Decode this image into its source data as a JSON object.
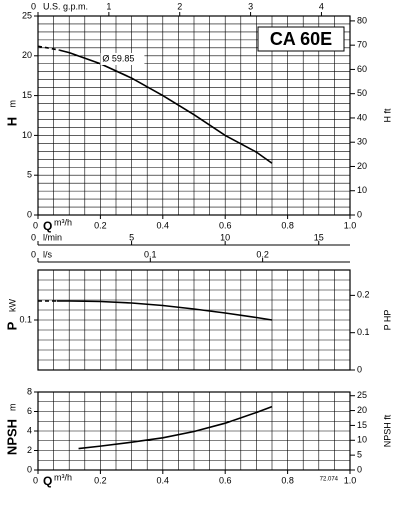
{
  "chart_data": [
    {
      "type": "line",
      "title": "CA 60E",
      "x_label": "Q",
      "x_unit": "m³/h",
      "xlim": [
        0,
        1
      ],
      "xticks": [
        0,
        0.2,
        0.4,
        0.6,
        0.8,
        {
          "value": 1,
          "label": "1.0"
        }
      ],
      "y_label": "H",
      "y_unit": "m",
      "ylim": [
        0,
        25
      ],
      "yticks": [
        0,
        5,
        10,
        15,
        20,
        25
      ],
      "y2_label": "H ft",
      "y2lim": [
        0,
        82.02
      ],
      "y2ticks": [
        0,
        10,
        20,
        30,
        40,
        50,
        60,
        70,
        80
      ],
      "extra_x_axes": [
        {
          "label": "U.S. g.p.m.",
          "lim": [
            0,
            4.403
          ],
          "ticks": [
            0,
            1,
            2,
            3,
            4
          ]
        },
        {
          "label": "l/min",
          "lim": [
            0,
            16.67
          ],
          "ticks": [
            0,
            5,
            10,
            15
          ]
        },
        {
          "label": "l/s",
          "lim": [
            0,
            0.2778
          ],
          "ticks": [
            0,
            0.1,
            0.2
          ]
        }
      ],
      "grid": true,
      "series": [
        {
          "color": "#000000",
          "style": "dashed",
          "x": [
            0,
            0.03,
            0.07
          ],
          "values": [
            21.2,
            21.0,
            20.7
          ]
        },
        {
          "name": "Ø 59.85",
          "color": "#000000",
          "style": "solid",
          "x": [
            0.07,
            0.1,
            0.2,
            0.3,
            0.4,
            0.5,
            0.6,
            0.7,
            0.75
          ],
          "values": [
            20.7,
            20.4,
            19.0,
            17.2,
            15.0,
            12.6,
            10.0,
            7.9,
            6.5
          ]
        }
      ]
    },
    {
      "type": "line",
      "y_label": "P",
      "y_unit": "kW",
      "xlim": [
        0,
        1
      ],
      "ylim": [
        0,
        0.2
      ],
      "yticks": [
        0.1
      ],
      "y2_label": "P HP",
      "y2lim": [
        0,
        0.268
      ],
      "y2ticks": [
        0,
        0.1,
        0.2
      ],
      "grid": true,
      "series": [
        {
          "color": "#000000",
          "style": "dashed",
          "x": [
            0,
            0.06
          ],
          "values": [
            0.138,
            0.138
          ]
        },
        {
          "color": "#000000",
          "style": "solid",
          "x": [
            0.06,
            0.1,
            0.2,
            0.3,
            0.4,
            0.5,
            0.6,
            0.7,
            0.75
          ],
          "values": [
            0.138,
            0.138,
            0.137,
            0.134,
            0.129,
            0.122,
            0.114,
            0.105,
            0.1
          ]
        }
      ]
    },
    {
      "type": "line",
      "note": "72.074",
      "x_label": "Q",
      "x_unit": "m³/h",
      "xlim": [
        0,
        1
      ],
      "xticks": [
        0,
        0.2,
        0.4,
        0.6,
        0.8,
        {
          "value": 1,
          "label": "1.0"
        }
      ],
      "y_label": "NPSH",
      "y_unit": "m",
      "ylim": [
        0,
        8
      ],
      "yticks": [
        0,
        2,
        4,
        6,
        8
      ],
      "y2_label": "NPSH ft",
      "y2lim": [
        0,
        26.25
      ],
      "y2ticks": [
        0,
        5,
        10,
        15,
        20,
        25
      ],
      "grid": true,
      "series": [
        {
          "color": "#000000",
          "style": "solid",
          "x": [
            0.13,
            0.2,
            0.3,
            0.4,
            0.5,
            0.6,
            0.7,
            0.75
          ],
          "values": [
            2.2,
            2.45,
            2.85,
            3.3,
            3.95,
            4.8,
            5.9,
            6.5
          ]
        }
      ]
    }
  ]
}
